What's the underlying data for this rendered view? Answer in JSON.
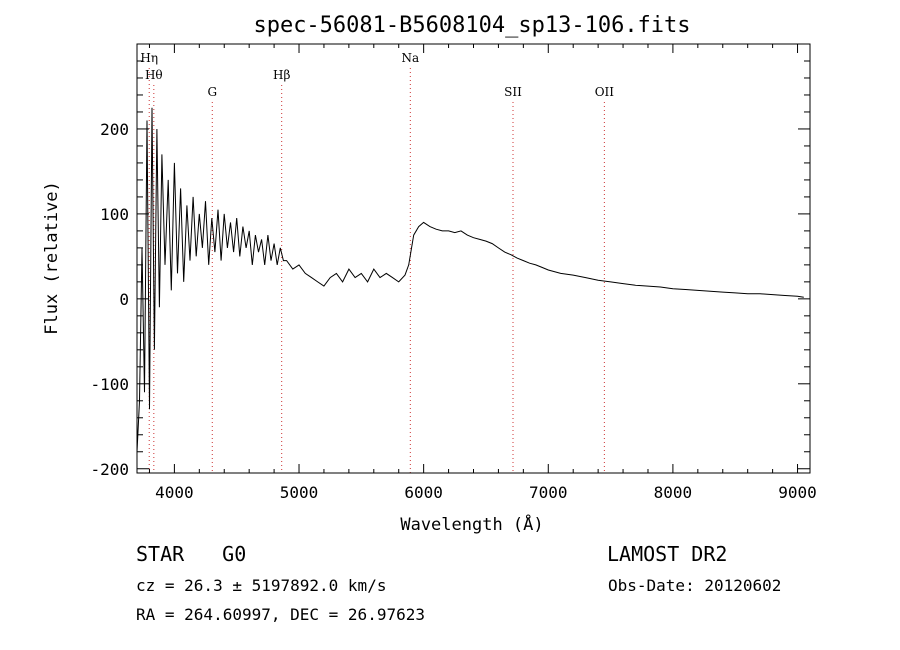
{
  "chart_data": {
    "type": "line",
    "title": "spec-56081-B5608104_sp13-106.fits",
    "xlabel": "Wavelength (Å)",
    "ylabel": "Flux (relative)",
    "xlim": [
      3700,
      9100
    ],
    "ylim": [
      -205,
      300
    ],
    "xticks": [
      4000,
      5000,
      6000,
      7000,
      8000,
      9000
    ],
    "yticks": [
      -200,
      -100,
      0,
      100,
      200
    ],
    "grid": false,
    "line_color": "#000000",
    "marker_color": "#cc3333",
    "lines": [
      {
        "label": "Hη",
        "x": 3798,
        "row": 1
      },
      {
        "label": "Hθ",
        "x": 3835,
        "row": 2
      },
      {
        "label": "G",
        "x": 4304,
        "row": 3
      },
      {
        "label": "Hβ",
        "x": 4861,
        "row": 2
      },
      {
        "label": "Na",
        "x": 5893,
        "row": 1
      },
      {
        "label": "SII",
        "x": 6717,
        "row": 3
      },
      {
        "label": "OII",
        "x": 7450,
        "row": 3
      }
    ],
    "series": [
      {
        "x": [
          3700,
          3720,
          3740,
          3760,
          3780,
          3800,
          3820,
          3840,
          3860,
          3880,
          3900,
          3925,
          3950,
          3975,
          4000,
          4025,
          4050,
          4075,
          4100,
          4125,
          4150,
          4175,
          4200,
          4225,
          4250,
          4275,
          4300,
          4325,
          4350,
          4375,
          4400,
          4425,
          4450,
          4475,
          4500,
          4525,
          4550,
          4575,
          4600,
          4625,
          4650,
          4675,
          4700,
          4725,
          4750,
          4775,
          4800,
          4825,
          4850,
          4875,
          4900,
          4950,
          5000,
          5050,
          5100,
          5150,
          5200,
          5250,
          5300,
          5350,
          5400,
          5450,
          5500,
          5550,
          5600,
          5650,
          5700,
          5750,
          5800,
          5850,
          5880,
          5920,
          5960,
          6000,
          6050,
          6100,
          6150,
          6200,
          6250,
          6300,
          6350,
          6400,
          6450,
          6500,
          6550,
          6600,
          6650,
          6700,
          6750,
          6800,
          6850,
          6900,
          6950,
          7000,
          7100,
          7200,
          7300,
          7400,
          7500,
          7600,
          7700,
          7800,
          7900,
          8000,
          8100,
          8200,
          8300,
          8400,
          8500,
          8600,
          8700,
          8800,
          8900,
          9000,
          9050
        ],
        "y": [
          -180,
          -120,
          60,
          -110,
          210,
          -130,
          225,
          -60,
          200,
          -10,
          170,
          40,
          140,
          10,
          160,
          30,
          130,
          20,
          110,
          45,
          120,
          50,
          100,
          60,
          115,
          40,
          95,
          55,
          105,
          45,
          100,
          60,
          90,
          55,
          95,
          50,
          85,
          60,
          80,
          40,
          75,
          55,
          70,
          40,
          75,
          45,
          65,
          40,
          60,
          45,
          45,
          35,
          40,
          30,
          25,
          20,
          15,
          25,
          30,
          20,
          35,
          25,
          30,
          20,
          35,
          25,
          30,
          25,
          20,
          28,
          40,
          75,
          85,
          90,
          85,
          82,
          80,
          80,
          78,
          80,
          75,
          72,
          70,
          68,
          65,
          60,
          55,
          52,
          48,
          45,
          42,
          40,
          37,
          34,
          30,
          28,
          25,
          22,
          20,
          18,
          16,
          15,
          14,
          12,
          11,
          10,
          9,
          8,
          7,
          6,
          6,
          5,
          4,
          3,
          2
        ]
      }
    ]
  },
  "info": {
    "class": "STAR",
    "subclass": "G0",
    "survey": "LAMOST DR2",
    "cz": "cz = 26.3 ± 5197892.0 km/s",
    "obs_date": "Obs-Date: 20120602",
    "radec": "RA = 264.60997, DEC =  26.97623"
  }
}
